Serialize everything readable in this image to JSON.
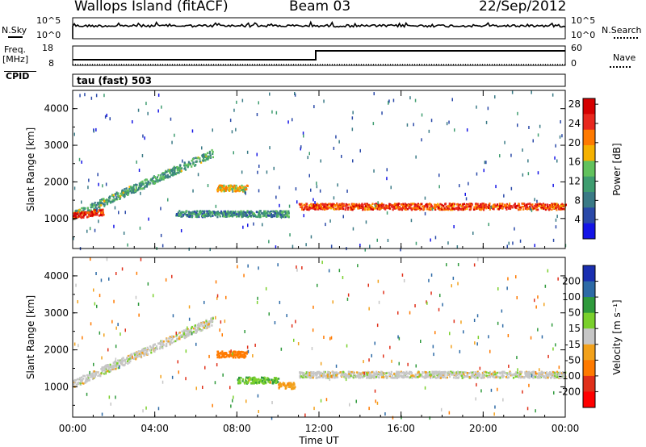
{
  "header": {
    "site": "Wallops Island (fitACF)",
    "beam": "Beam 03",
    "date": "22/Sep/2012"
  },
  "top_panel": {
    "left_label": "N.Sky",
    "left_top": "10^5",
    "left_bottom": "10^0",
    "right_label": "N.Search",
    "right_top": "10^5",
    "right_bottom": "10^0"
  },
  "freq_panel": {
    "freq_label": "Freq.",
    "freq_unit": "[MHz]",
    "freq_top": "18",
    "freq_bottom": "8",
    "nave_label": "Nave",
    "nave_top": "60",
    "nave_bottom": "0",
    "cpid_label": "CPID",
    "cpid_value": "tau (fast) 503"
  },
  "colors": {
    "power_scale": [
      "#1414e6",
      "#2a49a8",
      "#3a7a86",
      "#3f9d70",
      "#62c25d",
      "#f5b100",
      "#ff7a00",
      "#e8281e",
      "#d50000"
    ],
    "velocity_scale": [
      "#1a2fb0",
      "#2d6aa6",
      "#2f9a3c",
      "#7ad02c",
      "#c6c6c6",
      "#f2a11b",
      "#ff7a00",
      "#e0301a",
      "#ff0000"
    ]
  },
  "chart_data": [
    {
      "type": "heatmap",
      "title": "",
      "xlabel": "",
      "ylabel": "Slant Range [km]",
      "x_ticks": [
        "00:00",
        "04:00",
        "08:00",
        "12:00",
        "16:00",
        "20:00",
        "00:00"
      ],
      "xlim": [
        0,
        24
      ],
      "y_ticks": [
        "1000",
        "2000",
        "3000",
        "4000"
      ],
      "ylim": [
        180,
        4500
      ],
      "colorbar": {
        "label": "Power [dB]",
        "ticks": [
          "4",
          "8",
          "12",
          "16",
          "20",
          "24",
          "28"
        ],
        "range": [
          0,
          30
        ]
      },
      "features": [
        {
          "t_start": 0.0,
          "t_end": 6.8,
          "range_start": 1100,
          "range_end": 2800,
          "power_db": 12
        },
        {
          "t_start": 0.0,
          "t_end": 1.5,
          "range_start": 1100,
          "range_end": 1200,
          "power_db": 26
        },
        {
          "t_start": 5.0,
          "t_end": 10.5,
          "range_start": 1150,
          "range_end": 1150,
          "power_db": 10
        },
        {
          "t_start": 7.0,
          "t_end": 8.5,
          "range_start": 1850,
          "range_end": 1850,
          "power_db": 18
        },
        {
          "t_start": 11.0,
          "t_end": 24.0,
          "range_start": 1350,
          "range_end": 1350,
          "power_db": 24
        }
      ]
    },
    {
      "type": "heatmap",
      "title": "",
      "xlabel": "Time UT",
      "ylabel": "Slant Range [km]",
      "x_ticks": [
        "00:00",
        "04:00",
        "08:00",
        "12:00",
        "16:00",
        "20:00",
        "00:00"
      ],
      "xlim": [
        0,
        24
      ],
      "y_ticks": [
        "1000",
        "2000",
        "3000",
        "4000"
      ],
      "ylim": [
        180,
        4500
      ],
      "colorbar": {
        "label": "Velocity [m s⁻¹]",
        "ticks": [
          "200",
          "100",
          "50",
          "15",
          "-15",
          "-50",
          "-100",
          "-200"
        ],
        "range": [
          -250,
          250
        ]
      },
      "features": [
        {
          "t_start": 0.0,
          "t_end": 6.8,
          "range_start": 1100,
          "range_end": 2800,
          "velocity": 0
        },
        {
          "t_start": 7.0,
          "t_end": 8.5,
          "range_start": 1900,
          "range_end": 1900,
          "velocity": -80
        },
        {
          "t_start": 8.0,
          "t_end": 10.0,
          "range_start": 1200,
          "range_end": 1200,
          "velocity": 40
        },
        {
          "t_start": 10.0,
          "t_end": 10.8,
          "range_start": 1050,
          "range_end": 1050,
          "velocity": -40
        },
        {
          "t_start": 11.0,
          "t_end": 24.0,
          "range_start": 1350,
          "range_end": 1350,
          "velocity": 0
        }
      ]
    }
  ]
}
